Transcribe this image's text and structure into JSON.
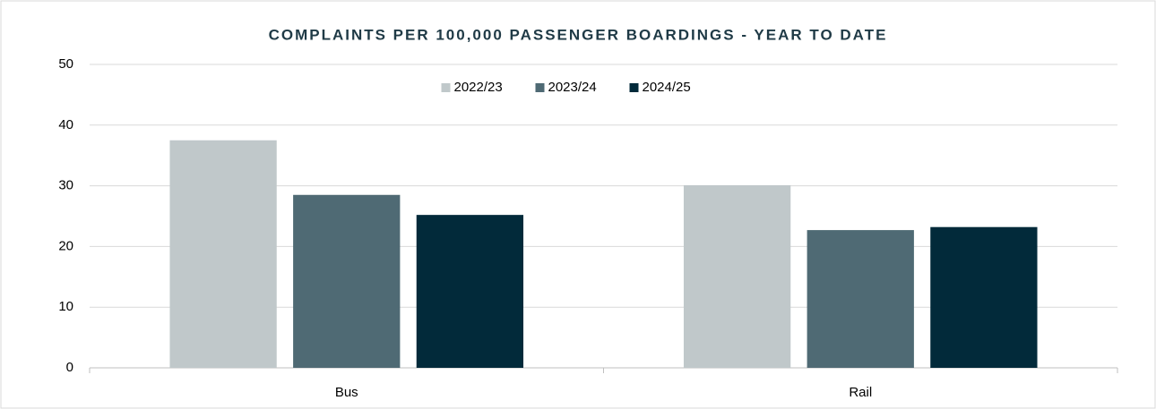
{
  "chart_data": {
    "type": "bar",
    "title": "COMPLAINTS PER 100,000 PASSENGER BOARDINGS - YEAR TO DATE",
    "categories": [
      "Bus",
      "Rail"
    ],
    "series": [
      {
        "name": "2022/23",
        "color": "#c0c8ca",
        "values": [
          37.5,
          30.1
        ]
      },
      {
        "name": "2023/24",
        "color": "#4f6a74",
        "values": [
          28.5,
          22.7
        ]
      },
      {
        "name": "2024/25",
        "color": "#022a3a",
        "values": [
          25.2,
          23.2
        ]
      }
    ],
    "ylim": [
      0,
      50
    ],
    "yticks": [
      0,
      10,
      20,
      30,
      40,
      50
    ],
    "grid": true,
    "legend": "top"
  }
}
